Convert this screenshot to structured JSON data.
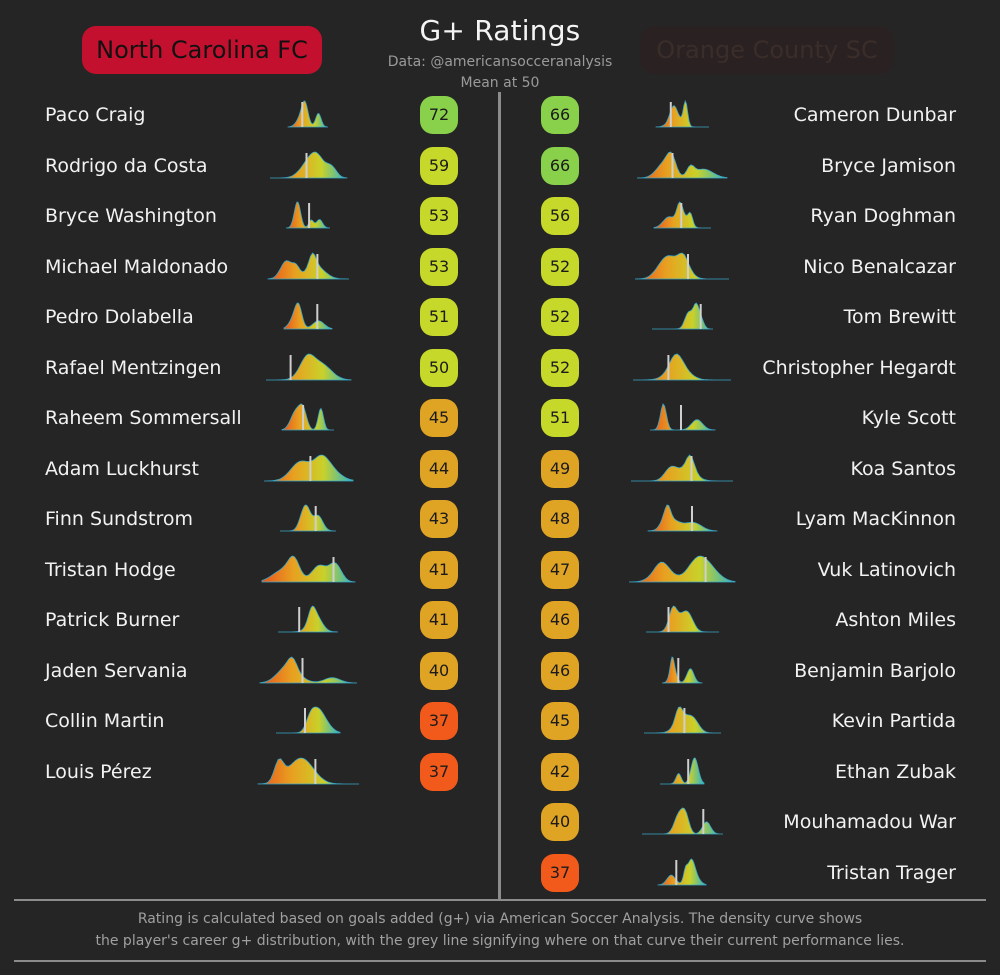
{
  "chart_data": {
    "type": "table",
    "title": "G+ Ratings",
    "subtitle_lines": [
      "Data: @americansocceranalysis",
      "Mean at 50"
    ],
    "footer_lines": [
      "Rating is calculated based on goals added (g+) via American Soccer Analysis. The density curve shows",
      "the player's career g+ distribution, with the grey line signifying where on that curve their current performance lies."
    ],
    "teams": [
      {
        "name": "North Carolina FC",
        "color": "#c3102f",
        "players": [
          {
            "name": "Paco Craig",
            "rating": 72
          },
          {
            "name": "Rodrigo da Costa",
            "rating": 59
          },
          {
            "name": "Bryce Washington",
            "rating": 53
          },
          {
            "name": "Michael Maldonado",
            "rating": 53
          },
          {
            "name": "Pedro Dolabella",
            "rating": 51
          },
          {
            "name": "Rafael Mentzingen",
            "rating": 50
          },
          {
            "name": "Raheem Sommersall",
            "rating": 45
          },
          {
            "name": "Adam Luckhurst",
            "rating": 44
          },
          {
            "name": "Finn Sundstrom",
            "rating": 43
          },
          {
            "name": "Tristan Hodge",
            "rating": 41
          },
          {
            "name": "Patrick Burner",
            "rating": 41
          },
          {
            "name": "Jaden Servania",
            "rating": 40
          },
          {
            "name": "Collin Martin",
            "rating": 37
          },
          {
            "name": "Louis Pérez",
            "rating": 37
          }
        ]
      },
      {
        "name": "Orange County SC",
        "color": "#2a2222",
        "players": [
          {
            "name": "Cameron Dunbar",
            "rating": 66
          },
          {
            "name": "Bryce Jamison",
            "rating": 66
          },
          {
            "name": "Ryan Doghman",
            "rating": 56
          },
          {
            "name": "Nico Benalcazar",
            "rating": 52
          },
          {
            "name": "Tom Brewitt",
            "rating": 52
          },
          {
            "name": "Christopher Hegardt",
            "rating": 52
          },
          {
            "name": "Kyle Scott",
            "rating": 51
          },
          {
            "name": "Koa Santos",
            "rating": 49
          },
          {
            "name": "Lyam MacKinnon",
            "rating": 48
          },
          {
            "name": "Vuk Latinovich",
            "rating": 47
          },
          {
            "name": "Ashton Miles",
            "rating": 46
          },
          {
            "name": "Benjamin Barjolo",
            "rating": 46
          },
          {
            "name": "Kevin Partida",
            "rating": 45
          },
          {
            "name": "Ethan Zubak",
            "rating": 42
          },
          {
            "name": "Mouhamadou War",
            "rating": 40
          },
          {
            "name": "Tristan Trager",
            "rating": 37
          }
        ]
      }
    ],
    "rating_colors": {
      "high": "#8ad14b",
      "upper_mid": "#c6d82a",
      "mid": "#e0a424",
      "low": "#f25a1c"
    },
    "curve_gradient": [
      "#e8541e",
      "#e8a020",
      "#c9d12a",
      "#2ab3c8"
    ],
    "marker_color": "#cfcfcf"
  }
}
